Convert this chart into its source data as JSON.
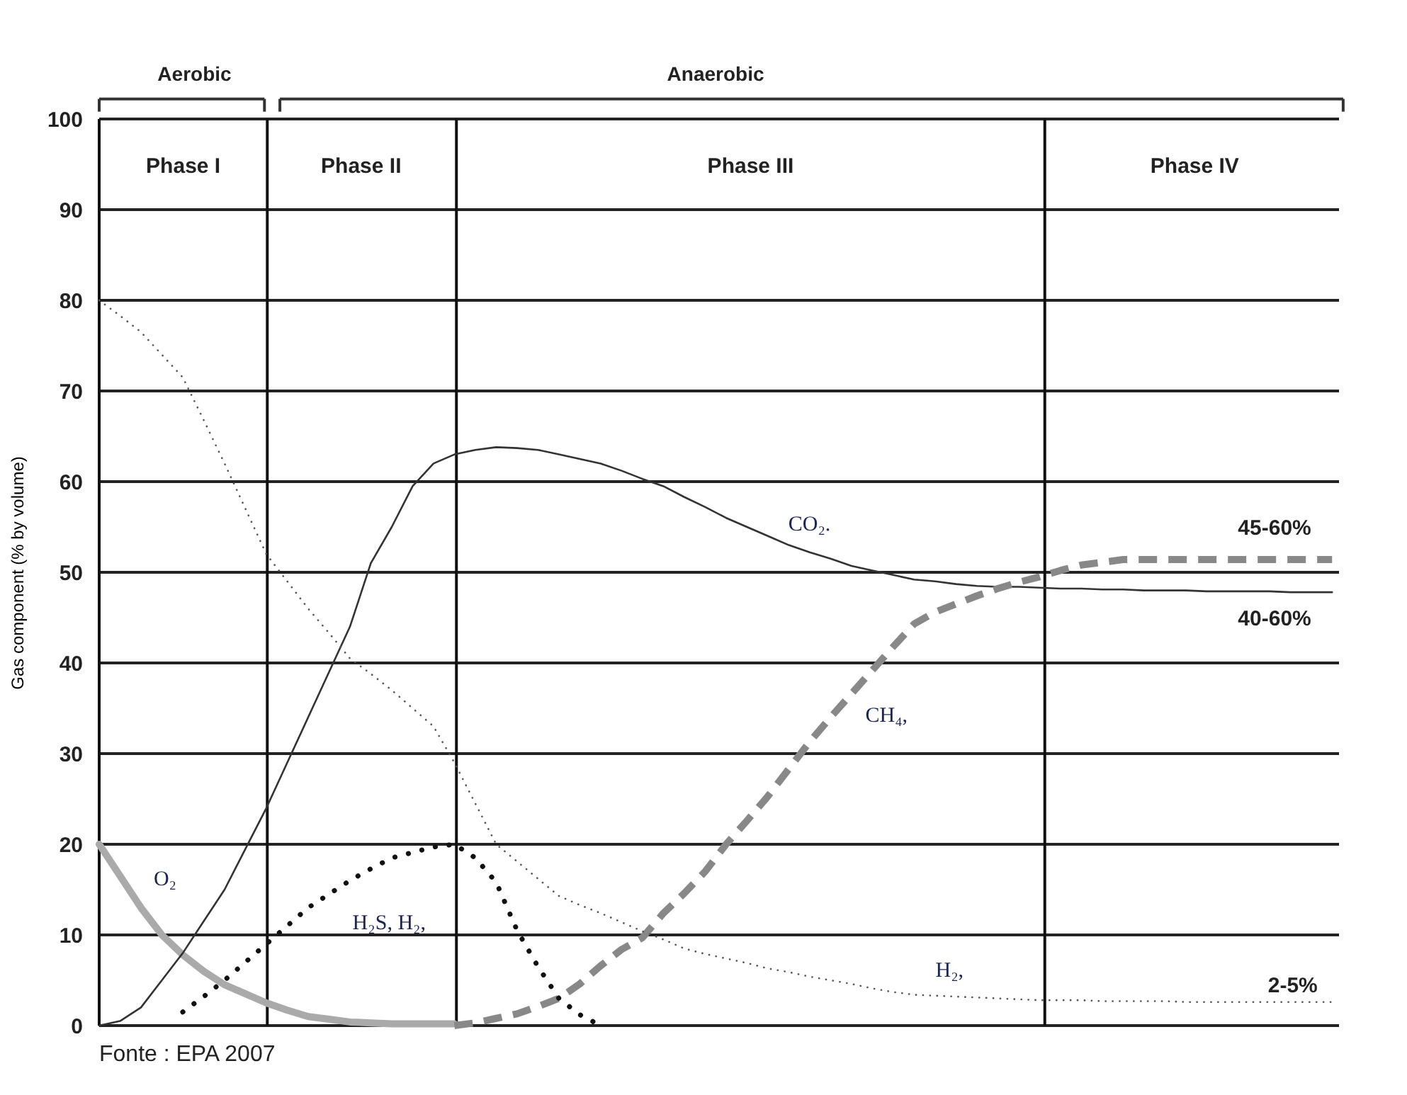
{
  "chart_data": {
    "type": "line",
    "ylabel": "Gas component (% by volume)",
    "categories": [
      null,
      null,
      null,
      null,
      null,
      null,
      null,
      null,
      null,
      null,
      null,
      null,
      null,
      null,
      null,
      null,
      null,
      null,
      null,
      null,
      null,
      null,
      null,
      null,
      null,
      null,
      null,
      null,
      null,
      null,
      null,
      null,
      null,
      null,
      null,
      null,
      null,
      null,
      null,
      null,
      null,
      null,
      null,
      null,
      null,
      null,
      null,
      null,
      null,
      null,
      null,
      null,
      null,
      null,
      null,
      null,
      null,
      null,
      null,
      null
    ],
    "ylim": [
      0,
      100
    ],
    "yticks": [
      0,
      10,
      20,
      30,
      40,
      50,
      60,
      70,
      80,
      90,
      100
    ],
    "grid": "y",
    "tick_labels": "y",
    "series": [
      {
        "name": "O₂",
        "color": "#aaaaaa",
        "line_style": "solid",
        "values": [
          20,
          16.5,
          13,
          10,
          7.8,
          6,
          4.5,
          3.5,
          2.5,
          1.7,
          1,
          0.7,
          0.4,
          0.3,
          0.2,
          0.2,
          0.2,
          0.2,
          null,
          null,
          null,
          null,
          null,
          null,
          null,
          null,
          null,
          null,
          null,
          null,
          null,
          null,
          null,
          null,
          null,
          null,
          null,
          null,
          null,
          null,
          null,
          null,
          null,
          null,
          null,
          null,
          null,
          null,
          null,
          null,
          null,
          null,
          null,
          null,
          null,
          null,
          null,
          null,
          null,
          null
        ]
      },
      {
        "name": "CO₂.",
        "color": "#333333",
        "line_style": "solid",
        "values": [
          0,
          0.5,
          2,
          5,
          8,
          11.5,
          15,
          19.5,
          24,
          29,
          34,
          39,
          44,
          51,
          55,
          59.5,
          62,
          63,
          63.5,
          63.8,
          63.7,
          63.5,
          63,
          62.5,
          62,
          61.2,
          60.3,
          59.5,
          58.3,
          57.2,
          56,
          55,
          54,
          53,
          52.2,
          51.5,
          50.7,
          50.2,
          49.7,
          49.2,
          49,
          48.7,
          48.5,
          48.4,
          48.4,
          48.3,
          48.2,
          48.2,
          48.1,
          48.1,
          48,
          48,
          48,
          47.9,
          47.9,
          47.9,
          47.9,
          47.8,
          47.8,
          47.8
        ]
      },
      {
        "name": "CH₄,",
        "color": "#888888",
        "line_style": "dashed",
        "values": [
          null,
          null,
          null,
          null,
          null,
          null,
          null,
          null,
          null,
          null,
          null,
          null,
          null,
          null,
          null,
          null,
          null,
          0,
          0.3,
          0.8,
          1.3,
          2.1,
          3,
          4.6,
          6.6,
          8.4,
          9.7,
          12.4,
          14.6,
          17,
          20,
          22.6,
          25.3,
          28.3,
          31.3,
          34,
          36.6,
          39.2,
          41.8,
          44.3,
          45.6,
          46.5,
          47.4,
          48.2,
          48.9,
          49.5,
          50.2,
          50.8,
          51.1,
          51.4,
          51.4,
          51.4,
          51.4,
          51.4,
          51.4,
          51.4,
          51.4,
          51.4,
          51.4,
          51.4
        ]
      },
      {
        "name": "H₂,",
        "color": "#555555",
        "line_style": "dotted",
        "values": [
          80,
          78.3,
          76.5,
          74,
          71.5,
          66.8,
          62,
          57,
          52,
          49,
          46,
          43.3,
          40.5,
          38.8,
          37,
          35,
          33,
          29,
          24.5,
          20,
          18.1,
          16.2,
          14.3,
          13.3,
          12.4,
          11.4,
          10.4,
          9.5,
          8.5,
          7.9,
          7.4,
          6.9,
          6.3,
          5.9,
          5.4,
          5,
          4.6,
          4.1,
          3.7,
          3.4,
          3.3,
          3.2,
          3.1,
          3,
          2.9,
          2.8,
          2.8,
          2.8,
          2.7,
          2.7,
          2.7,
          2.7,
          2.6,
          2.6,
          2.6,
          2.6,
          2.6,
          2.6,
          2.6,
          2.6
        ]
      },
      {
        "name": "H₂S, H₂,",
        "color": "#111111",
        "line_style": "dotted",
        "values": [
          null,
          null,
          null,
          null,
          1.5,
          3.2,
          5,
          7,
          9,
          11,
          13,
          14.5,
          16,
          17.3,
          18.5,
          19.1,
          19.7,
          20,
          18.5,
          15.8,
          10.5,
          6.5,
          3,
          1.2,
          0,
          null,
          null,
          null,
          null,
          null,
          null,
          null,
          null,
          null,
          null,
          null,
          null,
          null,
          null,
          null,
          null,
          null,
          null,
          null,
          null,
          null,
          null,
          null,
          null,
          null,
          null,
          null,
          null,
          null,
          null,
          null,
          null,
          null,
          null,
          null
        ]
      }
    ],
    "annotations": [
      "Phase I",
      "Phase II",
      "Phase III",
      "Phase IV",
      "Aerobic",
      "Anaerobic",
      "45-60%",
      "40-60%",
      "2-5%",
      "Fonte : EPA 2007"
    ]
  }
}
